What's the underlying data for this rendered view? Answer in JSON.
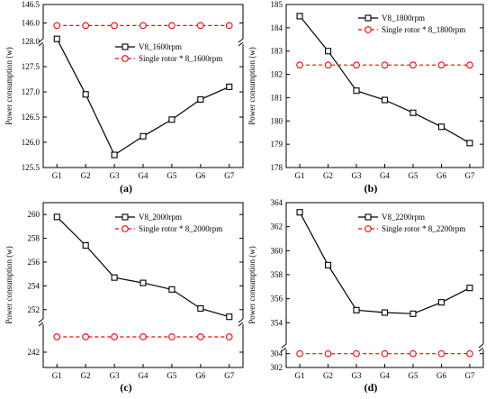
{
  "figure": {
    "panels": [
      "(a)",
      "(b)",
      "(c)",
      "(d)"
    ]
  },
  "chart_data": [
    {
      "type": "line",
      "panel_label": "(a)",
      "x": [
        "G1",
        "G2",
        "G3",
        "G4",
        "G5",
        "G6",
        "G7"
      ],
      "ylabel": "Power consumption (w)",
      "axis_break": true,
      "y_ranges": [
        [
          125.5,
          128.0
        ],
        [
          145.5,
          146.5
        ]
      ],
      "yticks_lower": [
        "125.5",
        "126.0",
        "126.5",
        "127.0",
        "127.5",
        "128.0"
      ],
      "yticks_upper": [
        "146.0",
        "146.5"
      ],
      "legend_position": "upper-middle",
      "series": [
        {
          "name": "V8_1600rpm",
          "values": [
            128.05,
            126.95,
            125.75,
            126.12,
            126.45,
            126.85,
            127.1
          ],
          "color": "#000000",
          "marker": "square"
        },
        {
          "name": "Single rotor * 8_1600rpm",
          "values": [
            145.93,
            145.93,
            145.93,
            145.93,
            145.93,
            145.93,
            145.93
          ],
          "color": "#ff0000",
          "marker": "circle",
          "dashed": true
        }
      ]
    },
    {
      "type": "line",
      "panel_label": "(b)",
      "x": [
        "G1",
        "G2",
        "G3",
        "G4",
        "G5",
        "G6",
        "G7"
      ],
      "ylabel": "Power consumption (w)",
      "axis_break": false,
      "ylim": [
        178,
        185
      ],
      "yticks": [
        "178",
        "179",
        "180",
        "181",
        "182",
        "183",
        "184",
        "185"
      ],
      "legend_position": "top-right",
      "series": [
        {
          "name": "V8_1800rpm",
          "values": [
            184.5,
            183.0,
            181.3,
            180.9,
            180.35,
            179.75,
            179.05
          ],
          "color": "#000000",
          "marker": "square"
        },
        {
          "name": "Single rotor * 8_1800rpm",
          "values": [
            182.4,
            182.4,
            182.4,
            182.4,
            182.4,
            182.4,
            182.4
          ],
          "color": "#ff0000",
          "marker": "circle",
          "dashed": true
        }
      ]
    },
    {
      "type": "line",
      "panel_label": "(c)",
      "x": [
        "G1",
        "G2",
        "G3",
        "G4",
        "G5",
        "G6",
        "G7"
      ],
      "ylabel": "Power consumption (w)",
      "axis_break": true,
      "y_ranges": [
        [
          241,
          244
        ],
        [
          251,
          261
        ]
      ],
      "yticks_lower": [
        "242"
      ],
      "yticks_upper": [
        "252",
        "254",
        "256",
        "258",
        "260"
      ],
      "legend_position": "top-right",
      "series": [
        {
          "name": "V8_2000rpm",
          "values": [
            259.8,
            257.4,
            254.7,
            254.25,
            253.7,
            252.1,
            251.4
          ],
          "color": "#000000",
          "marker": "square"
        },
        {
          "name": "Single rotor * 8_2000rpm",
          "values": [
            243.0,
            243.0,
            243.0,
            243.0,
            243.0,
            243.0,
            243.0
          ],
          "color": "#ff0000",
          "marker": "circle",
          "dashed": true
        }
      ]
    },
    {
      "type": "line",
      "panel_label": "(d)",
      "x": [
        "G1",
        "G2",
        "G3",
        "G4",
        "G5",
        "G6",
        "G7"
      ],
      "ylabel": "Power consumption (w)",
      "axis_break": true,
      "y_ranges": [
        [
          302,
          305
        ],
        [
          352,
          364
        ]
      ],
      "yticks_lower": [
        "302",
        "304"
      ],
      "yticks_upper": [
        "354",
        "356",
        "358",
        "360",
        "362",
        "364"
      ],
      "legend_position": "top-right",
      "series": [
        {
          "name": "V8_2200rpm",
          "values": [
            363.2,
            358.8,
            355.05,
            354.85,
            354.75,
            355.7,
            356.9
          ],
          "color": "#000000",
          "marker": "square"
        },
        {
          "name": "Single rotor * 8_2200rpm",
          "values": [
            304.0,
            304.0,
            304.0,
            304.0,
            304.0,
            304.0,
            304.0
          ],
          "color": "#ff0000",
          "marker": "circle",
          "dashed": true
        }
      ]
    }
  ]
}
